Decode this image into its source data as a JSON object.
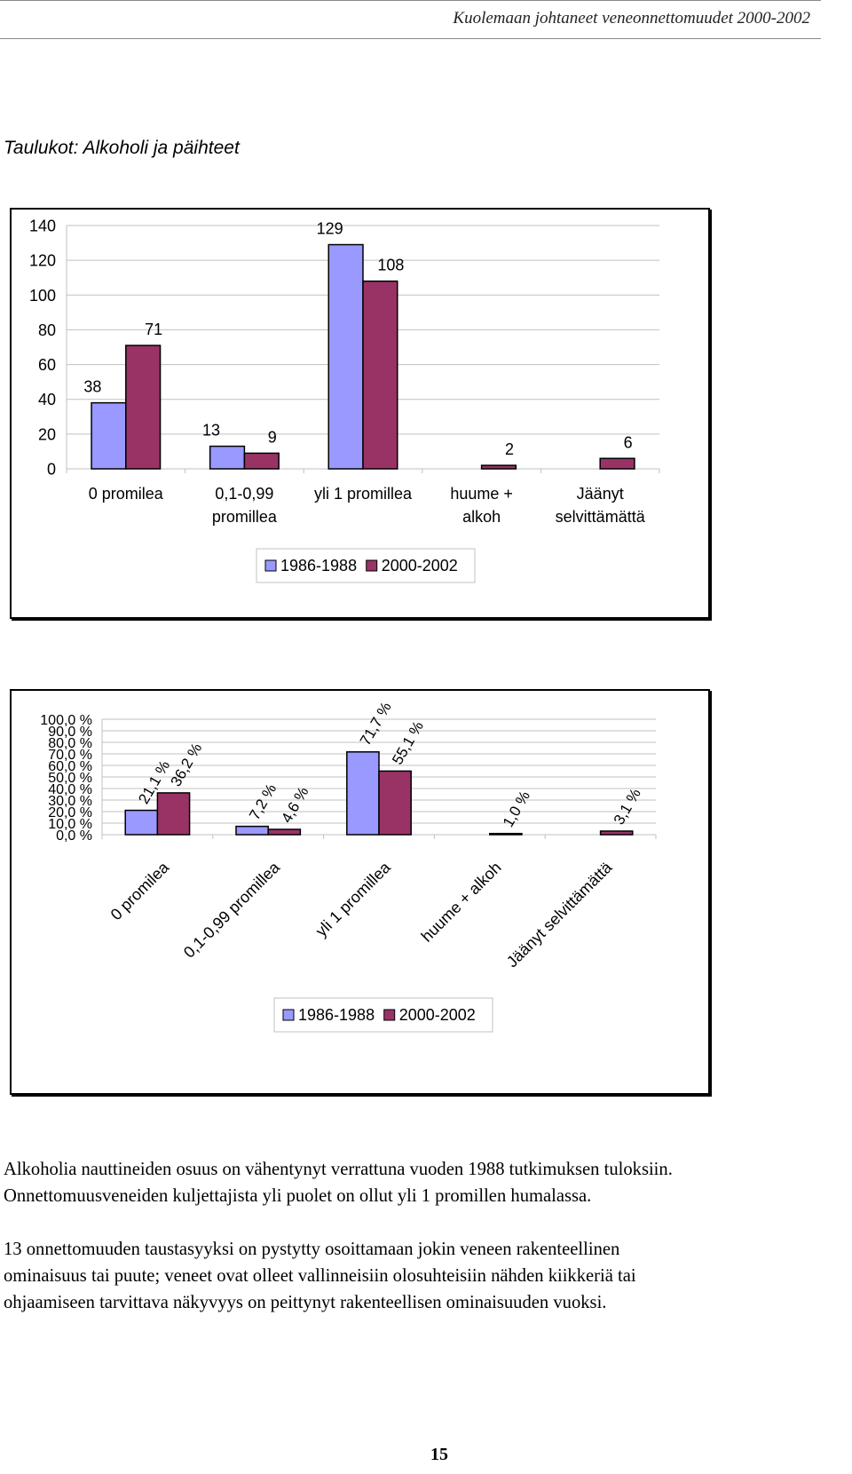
{
  "header": {
    "title": "Kuolemaan johtaneet veneonnettomuudet 2000-2002"
  },
  "section_title": "Taulukot: Alkoholi ja päihteet",
  "colors": {
    "series1": "#9999ff",
    "series2": "#993366",
    "grid": "#c0c0c0",
    "border": "#000000"
  },
  "chart_data": [
    {
      "type": "bar",
      "categories": [
        [
          "0 promilea"
        ],
        [
          "0,1-0,99",
          "promillea"
        ],
        [
          "yli 1 promillea"
        ],
        [
          "huume +",
          "alkoh"
        ],
        [
          "Jäänyt",
          "selvittämättä"
        ]
      ],
      "series": [
        {
          "name": "1986-1988",
          "values": [
            38,
            13,
            129,
            null,
            null
          ],
          "labels": [
            "38",
            "13",
            "129",
            "",
            ""
          ]
        },
        {
          "name": "2000-2002",
          "values": [
            71,
            9,
            108,
            2,
            6
          ],
          "labels": [
            "71",
            "9",
            "108",
            "2",
            "6"
          ]
        }
      ],
      "ylim": [
        0,
        140
      ],
      "yticks": [
        0,
        20,
        40,
        60,
        80,
        100,
        120,
        140
      ],
      "ytick_labels": [
        "0",
        "20",
        "40",
        "60",
        "80",
        "100",
        "120",
        "140"
      ],
      "grid": true,
      "legend": "bottom-center"
    },
    {
      "type": "bar",
      "categories": [
        [
          "0 promilea"
        ],
        [
          "0,1-0,99 promillea"
        ],
        [
          "yli 1 promillea"
        ],
        [
          "huume + alkoh"
        ],
        [
          "Jäänyt selvittämättä"
        ]
      ],
      "series": [
        {
          "name": "1986-1988",
          "values": [
            21.1,
            7.2,
            71.7,
            null,
            null
          ],
          "labels": [
            "21,1 %",
            "7,2 %",
            "71,7 %",
            "",
            ""
          ]
        },
        {
          "name": "2000-2002",
          "values": [
            36.2,
            4.6,
            55.1,
            1.0,
            3.1
          ],
          "labels": [
            "36,2 %",
            "4,6 %",
            "55,1 %",
            "1,0 %",
            "3,1 %"
          ]
        }
      ],
      "ylim": [
        0,
        100
      ],
      "yticks": [
        0,
        10,
        20,
        30,
        40,
        50,
        60,
        70,
        80,
        90,
        100
      ],
      "ytick_labels": [
        "0,0 %",
        "10,0 %",
        "20,0 %",
        "30,0 %",
        "40,0 %",
        "50,0 %",
        "60,0 %",
        "70,0 %",
        "80,0 %",
        "90,0 %",
        "100,0 %"
      ],
      "grid": true,
      "legend": "bottom-center"
    }
  ],
  "paragraphs": [
    {
      "lines": [
        "Alkoholia nauttineiden osuus on vähentynyt verrattuna vuoden 1988 tutkimuksen tuloksiin.",
        "Onnettomuusveneiden kuljettajista yli puolet on ollut yli 1 promillen humalassa."
      ]
    },
    {
      "lines": [
        "13 onnettomuuden taustasyyksi on pystytty osoittamaan jokin veneen rakenteellinen",
        "ominaisuus tai puute; veneet ovat olleet vallinneisiin olosuhteisiin nähden kiikkeriä tai",
        "ohjaamiseen tarvittava näkyvyys on peittynyt rakenteellisen ominaisuuden vuoksi."
      ]
    }
  ],
  "page_number": "15"
}
